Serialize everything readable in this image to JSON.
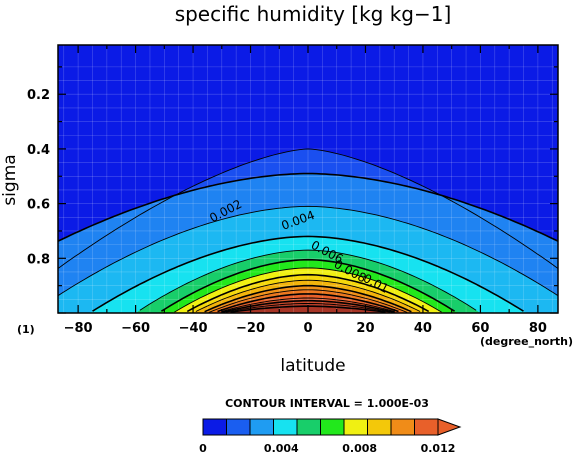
{
  "chart_data": {
    "type": "contour",
    "title": "specific humidity [kg kg−1]",
    "xlabel": "latitude",
    "ylabel": "sigma",
    "x_unit_label": "(degree_north)",
    "y_unit_label": "(1)",
    "xlim": [
      -87,
      87
    ],
    "ylim": [
      1.0,
      0.02
    ],
    "x_ticks": [
      -80,
      -60,
      -40,
      -20,
      0,
      20,
      40,
      60,
      80
    ],
    "y_ticks": [
      0.2,
      0.4,
      0.6,
      0.8
    ],
    "x_tick_labels": [
      "−80",
      "−60",
      "−40",
      "−20",
      "0",
      "20",
      "40",
      "60",
      "80"
    ],
    "y_tick_labels": [
      "0.2",
      "0.4",
      "0.6",
      "0.8"
    ],
    "contour_interval_text": "CONTOUR INTERVAL = 1.000E-03",
    "contour_levels": [
      0.001,
      0.002,
      0.003,
      0.004,
      0.005,
      0.006,
      0.007,
      0.008,
      0.009,
      0.01,
      0.011,
      0.012,
      0.013,
      0.014,
      0.015,
      0.016
    ],
    "contour_labels": [
      {
        "text": "0.002",
        "lat": -28,
        "sigma": 0.64,
        "angle": -28
      },
      {
        "text": "0.004",
        "lat": -3,
        "sigma": 0.675,
        "angle": -20
      },
      {
        "text": "0.006",
        "lat": 6,
        "sigma": 0.79,
        "angle": 28
      },
      {
        "text": "0.008",
        "lat": 14,
        "sigma": 0.86,
        "angle": 28
      },
      {
        "text": "0.01",
        "lat": 23,
        "sigma": 0.905,
        "angle": 28
      }
    ],
    "colorbar": {
      "labels": [
        "0",
        "0.004",
        "0.008",
        "0.012"
      ],
      "colors": [
        "#0b1be6",
        "#1a5ef0",
        "#1f9cf2",
        "#17e2f0",
        "#18ce6a",
        "#22e81c",
        "#f0f012",
        "#f3c80a",
        "#f08c18",
        "#e8602a"
      ]
    },
    "grid": true
  }
}
